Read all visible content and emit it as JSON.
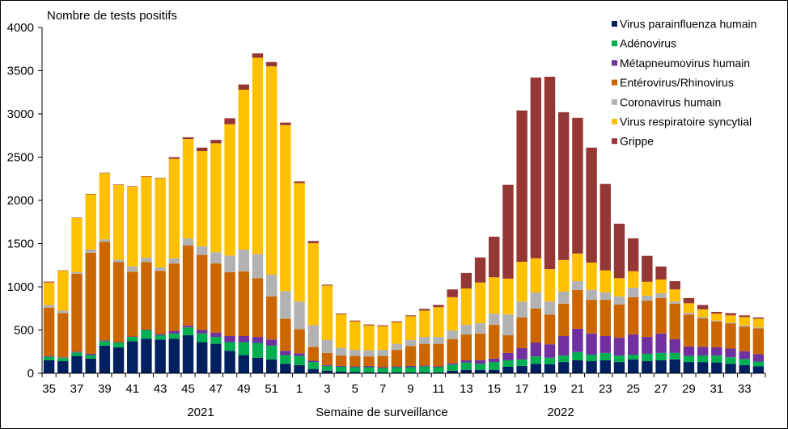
{
  "chart_data": {
    "type": "bar",
    "stacked": true,
    "title": "",
    "ylabel": "Nombre de tests positifs",
    "xlabel": "Semaine de surveillance",
    "year_labels": [
      "2021",
      "2022"
    ],
    "ylim": [
      0,
      4000
    ],
    "yticks": [
      0,
      500,
      1000,
      1500,
      2000,
      2500,
      3000,
      3500,
      4000
    ],
    "grid": false,
    "legend_position": "top-right",
    "categories": [
      "35",
      "36",
      "37",
      "38",
      "39",
      "40",
      "41",
      "42",
      "43",
      "44",
      "45",
      "46",
      "47",
      "48",
      "49",
      "50",
      "51",
      "52",
      "1",
      "2",
      "3",
      "4",
      "5",
      "6",
      "7",
      "8",
      "9",
      "10",
      "11",
      "12",
      "13",
      "14",
      "15",
      "16",
      "17",
      "18",
      "19",
      "20",
      "21",
      "22",
      "23",
      "24",
      "25",
      "26",
      "27",
      "28",
      "29",
      "30",
      "31",
      "32",
      "33",
      "34"
    ],
    "xtick_labels": [
      "35",
      "37",
      "39",
      "41",
      "43",
      "45",
      "47",
      "49",
      "51",
      "1",
      "3",
      "5",
      "7",
      "9",
      "11",
      "13",
      "15",
      "17",
      "19",
      "21",
      "23",
      "25",
      "27",
      "29",
      "31",
      "33"
    ],
    "category_years": [
      "2021",
      "2021",
      "2021",
      "2021",
      "2021",
      "2021",
      "2021",
      "2021",
      "2021",
      "2021",
      "2021",
      "2021",
      "2021",
      "2021",
      "2021",
      "2021",
      "2021",
      "2021",
      "2022",
      "2022",
      "2022",
      "2022",
      "2022",
      "2022",
      "2022",
      "2022",
      "2022",
      "2022",
      "2022",
      "2022",
      "2022",
      "2022",
      "2022",
      "2022",
      "2022",
      "2022",
      "2022",
      "2022",
      "2022",
      "2022",
      "2022",
      "2022",
      "2022",
      "2022",
      "2022",
      "2022",
      "2022",
      "2022",
      "2022",
      "2022",
      "2022",
      "2022"
    ],
    "series": [
      {
        "name": "Virus parainfluenza humain",
        "color": "#002060",
        "values": [
          150,
          140,
          200,
          170,
          320,
          300,
          370,
          400,
          390,
          400,
          440,
          360,
          340,
          260,
          210,
          180,
          160,
          110,
          95,
          50,
          30,
          20,
          15,
          10,
          10,
          10,
          10,
          10,
          10,
          30,
          40,
          40,
          40,
          75,
          85,
          110,
          105,
          130,
          150,
          140,
          150,
          130,
          160,
          140,
          150,
          160,
          130,
          130,
          125,
          110,
          95,
          80
        ]
      },
      {
        "name": "Adénovirus",
        "color": "#00B050",
        "values": [
          40,
          40,
          40,
          40,
          50,
          55,
          50,
          100,
          50,
          60,
          90,
          100,
          80,
          100,
          150,
          170,
          160,
          100,
          105,
          80,
          55,
          55,
          55,
          60,
          50,
          60,
          60,
          70,
          60,
          70,
          85,
          70,
          90,
          75,
          75,
          85,
          75,
          75,
          95,
          75,
          85,
          75,
          55,
          85,
          85,
          75,
          70,
          75,
          80,
          75,
          70,
          55
        ]
      },
      {
        "name": "Métapneumovirus humain",
        "color": "#7030A0",
        "values": [
          10,
          5,
          10,
          15,
          10,
          5,
          5,
          5,
          15,
          30,
          20,
          40,
          50,
          70,
          70,
          70,
          70,
          50,
          30,
          15,
          10,
          10,
          10,
          15,
          10,
          10,
          15,
          10,
          10,
          15,
          25,
          40,
          40,
          85,
          130,
          160,
          155,
          225,
          270,
          245,
          195,
          205,
          235,
          195,
          225,
          160,
          110,
          100,
          95,
          100,
          90,
          85
        ]
      },
      {
        "name": "Entérovirus/Rhinovirus",
        "color": "#CC6600",
        "values": [
          560,
          510,
          900,
          1170,
          1140,
          925,
          750,
          780,
          730,
          780,
          930,
          870,
          800,
          740,
          750,
          680,
          500,
          370,
          280,
          160,
          140,
          120,
          120,
          110,
          130,
          190,
          230,
          250,
          260,
          280,
          300,
          310,
          390,
          205,
          355,
          395,
          345,
          375,
          450,
          390,
          420,
          385,
          430,
          420,
          410,
          410,
          370,
          330,
          300,
          290,
          285,
          300
        ]
      },
      {
        "name": "Coronavirus humain",
        "color": "#B2B2B2",
        "values": [
          30,
          30,
          20,
          35,
          30,
          30,
          60,
          50,
          40,
          60,
          80,
          100,
          130,
          190,
          250,
          280,
          250,
          320,
          320,
          250,
          150,
          90,
          70,
          70,
          70,
          70,
          70,
          80,
          80,
          100,
          110,
          120,
          130,
          240,
          185,
          185,
          150,
          140,
          100,
          115,
          85,
          95,
          110,
          58,
          55,
          25,
          20,
          15,
          10,
          10,
          15,
          10
        ]
      },
      {
        "name": "Virus respiratoire syncytial",
        "color": "#FFC000",
        "values": [
          260,
          460,
          625,
          640,
          765,
          865,
          925,
          940,
          1030,
          1150,
          1150,
          1100,
          1260,
          1520,
          1850,
          2270,
          2410,
          1920,
          1370,
          950,
          630,
          385,
          330,
          290,
          275,
          250,
          275,
          305,
          345,
          385,
          420,
          470,
          420,
          415,
          460,
          395,
          375,
          365,
          320,
          315,
          255,
          210,
          190,
          160,
          160,
          140,
          110,
          90,
          80,
          85,
          95,
          100
        ]
      },
      {
        "name": "Grippe",
        "color": "#953735",
        "values": [
          10,
          5,
          5,
          5,
          5,
          5,
          5,
          5,
          5,
          20,
          20,
          40,
          40,
          70,
          60,
          50,
          50,
          30,
          20,
          25,
          10,
          10,
          10,
          10,
          10,
          10,
          10,
          20,
          25,
          90,
          180,
          290,
          470,
          1085,
          1750,
          2090,
          2225,
          1710,
          1570,
          1330,
          1000,
          630,
          380,
          300,
          150,
          95,
          60,
          50,
          20,
          25,
          20,
          15
        ]
      }
    ]
  }
}
